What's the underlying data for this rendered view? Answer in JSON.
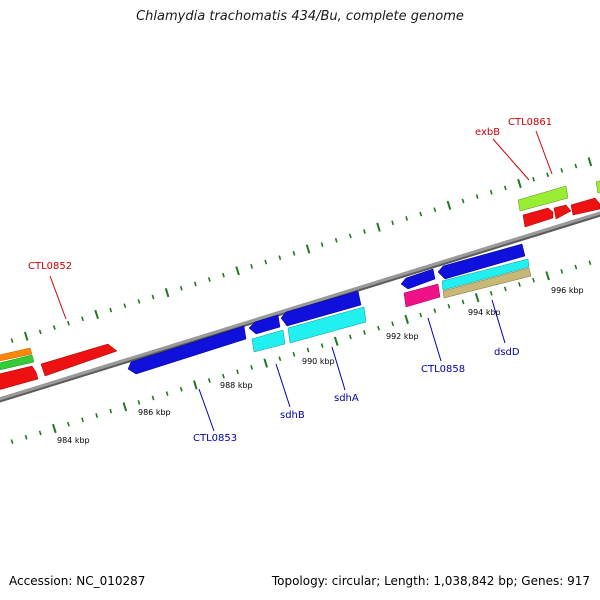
{
  "title": "Chlamydia trachomatis 434/Bu, complete genome",
  "footer": {
    "accession": "Accession: NC_010287",
    "summary": "Topology: circular; Length: 1,038,842 bp; Genes: 917"
  },
  "colors": {
    "backbone": "#8c8c8c",
    "tick": "#1e7a1e",
    "forward_label": "#cc0000",
    "reverse_label": "#0000aa"
  },
  "tick_labels": [
    "984 kbp",
    "986 kbp",
    "988 kbp",
    "990 kbp",
    "992 kbp",
    "994 kbp",
    "996 kbp"
  ],
  "gene_labels": [
    {
      "name": "CTL0852",
      "strand": "forward"
    },
    {
      "name": "exbB",
      "strand": "forward"
    },
    {
      "name": "CTL0861",
      "strand": "forward"
    },
    {
      "name": "CTL0853",
      "strand": "reverse"
    },
    {
      "name": "sdhB",
      "strand": "reverse"
    },
    {
      "name": "sdhA",
      "strand": "reverse"
    },
    {
      "name": "CTL0858",
      "strand": "reverse"
    },
    {
      "name": "dsdD",
      "strand": "reverse"
    }
  ]
}
